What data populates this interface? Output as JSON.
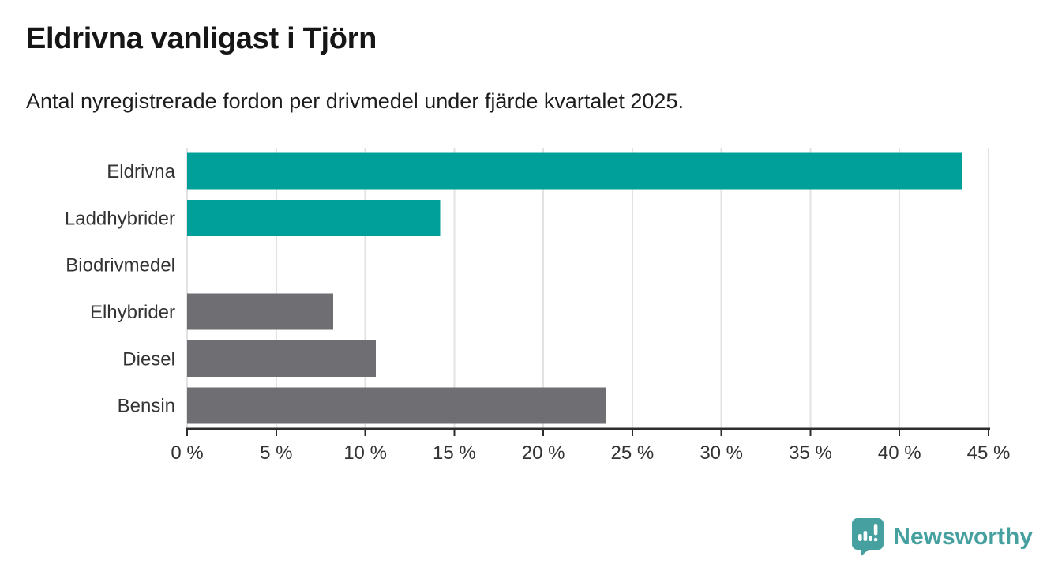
{
  "chart_data": {
    "type": "bar",
    "orientation": "horizontal",
    "title": "Eldrivna vanligast i Tjörn",
    "subtitle": "Antal nyregistrerade fordon per drivmedel under fjärde kvartalet 2025.",
    "categories": [
      "Eldrivna",
      "Laddhybrider",
      "Biodrivmedel",
      "Elhybrider",
      "Diesel",
      "Bensin"
    ],
    "values": [
      43.5,
      14.2,
      0,
      8.2,
      10.6,
      23.5
    ],
    "unit": "%",
    "bar_colors": [
      "#00a09a",
      "#00a09a",
      "#6e6e73",
      "#6e6e73",
      "#6e6e73",
      "#6e6e73"
    ],
    "highlight_color": "#00a09a",
    "default_color": "#6e6e73",
    "xlabel": "",
    "ylabel": "",
    "xlim": [
      0,
      45
    ],
    "tick_values": [
      0,
      5,
      10,
      15,
      20,
      25,
      30,
      35,
      40,
      45
    ],
    "tick_labels": [
      "0 %",
      "5 %",
      "10 %",
      "15 %",
      "20 %",
      "25 %",
      "30 %",
      "35 %",
      "40 %",
      "45 %"
    ],
    "grid": true,
    "gridline_color": "#e2e2e2",
    "axis_color": "#2d2d2d",
    "legend": "none"
  },
  "footer": {
    "brand_name": "Newsworthy",
    "brand_color": "#46a0a0"
  }
}
